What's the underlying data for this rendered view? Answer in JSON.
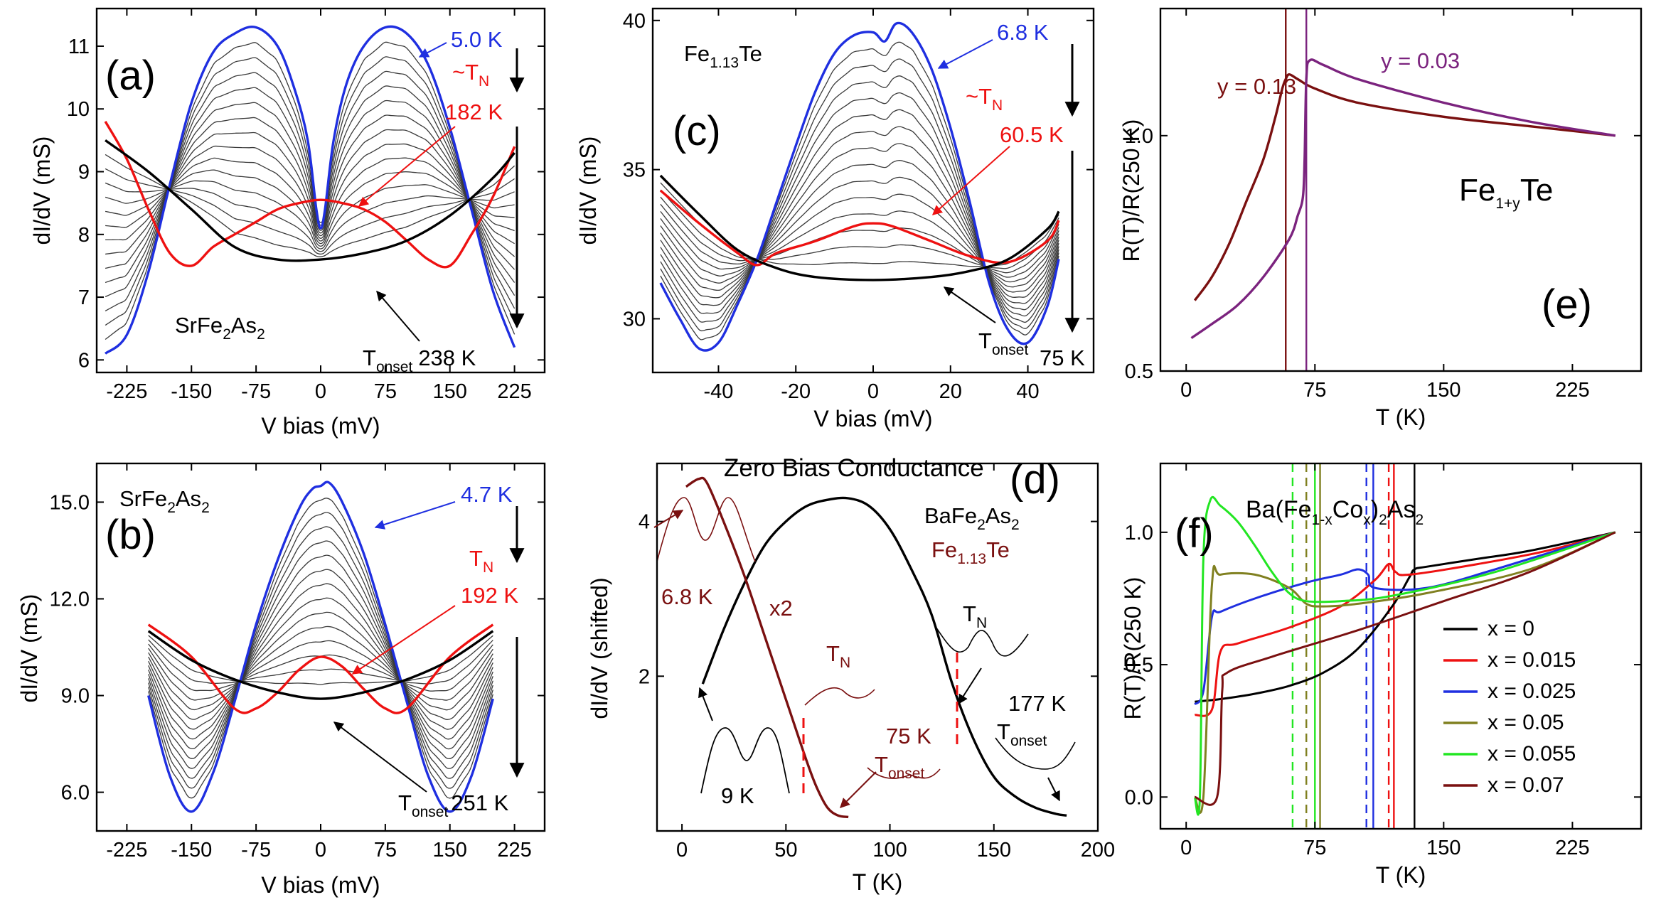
{
  "colors": {
    "blue": "#1f2fe0",
    "red": "#ee1111",
    "black": "#000000",
    "gray": "#3a3a3a",
    "maroon": "#7a1010",
    "purple": "#7b237e",
    "green": "#22e622",
    "olive": "#808020"
  },
  "chart_data": [
    {
      "type": "line",
      "panel": "a",
      "label": "(a)",
      "material": "SrFe",
      "material_sub1": "2",
      "material_mid": "As",
      "material_sub2": "2",
      "xlabel": "V bias (mV)",
      "ylabel": "dI/dV (mS)",
      "xlim": [
        -260,
        260
      ],
      "ylim": [
        5.8,
        11.6
      ],
      "xticks": [
        -225,
        -150,
        -75,
        0,
        75,
        150,
        225
      ],
      "yticks": [
        6,
        7,
        8,
        9,
        10,
        11
      ],
      "xtick_labels": [
        "-225",
        "-150",
        "-75",
        "0",
        "75",
        "150",
        "225"
      ],
      "ytick_labels": [
        "6",
        "7",
        "8",
        "9",
        "10",
        "11"
      ],
      "low_label": "5.0 K",
      "tn_label": "~T",
      "tn_sub": "N",
      "tn_value": "182 K",
      "onset_label": "T",
      "onset_sub": "onset",
      "onset_value": "238 K",
      "series": [
        {
          "name": "5.0 K",
          "color": "blue",
          "x": [
            -250,
            -225,
            -200,
            -175,
            -150,
            -125,
            -100,
            -75,
            -50,
            -30,
            -15,
            -5,
            0,
            5,
            15,
            30,
            50,
            75,
            100,
            125,
            150,
            175,
            200,
            225
          ],
          "y": [
            6.1,
            6.4,
            7.4,
            8.8,
            10.1,
            10.9,
            11.2,
            11.3,
            11.0,
            10.3,
            9.5,
            8.4,
            8.1,
            8.4,
            9.5,
            10.4,
            11.0,
            11.3,
            11.2,
            10.7,
            9.7,
            8.4,
            7.1,
            6.2
          ]
        },
        {
          "name": "182 K",
          "color": "red",
          "x": [
            -250,
            -225,
            -200,
            -175,
            -150,
            -125,
            -100,
            -75,
            -50,
            -25,
            0,
            25,
            50,
            75,
            100,
            125,
            150,
            175,
            200,
            225
          ],
          "y": [
            9.8,
            9.2,
            8.4,
            7.7,
            7.5,
            7.8,
            8.0,
            8.2,
            8.4,
            8.5,
            8.55,
            8.5,
            8.4,
            8.2,
            7.9,
            7.6,
            7.5,
            8.0,
            8.6,
            9.4
          ]
        },
        {
          "name": "238 K",
          "color": "black",
          "x": [
            -250,
            -200,
            -150,
            -100,
            -50,
            0,
            50,
            100,
            150,
            200,
            225
          ],
          "y": [
            9.5,
            9.0,
            8.4,
            7.8,
            7.6,
            7.6,
            7.7,
            7.9,
            8.3,
            8.9,
            9.3
          ]
        }
      ]
    },
    {
      "type": "line",
      "panel": "b",
      "label": "(b)",
      "material": "SrFe",
      "material_sub1": "2",
      "material_mid": "As",
      "material_sub2": "2",
      "xlabel": "V bias (mV)",
      "ylabel": "dI/dV (mS)",
      "xlim": [
        -260,
        260
      ],
      "ylim": [
        4.8,
        16.2
      ],
      "xticks": [
        -225,
        -150,
        -75,
        0,
        75,
        150,
        225
      ],
      "yticks": [
        6,
        9,
        12,
        15
      ],
      "xtick_labels": [
        "-225",
        "-150",
        "-75",
        "0",
        "75",
        "150",
        "225"
      ],
      "ytick_labels": [
        "6.0",
        "9.0",
        "12.0",
        "15.0"
      ],
      "low_label": "4.7 K",
      "tn_label": "T",
      "tn_sub": "N",
      "tn_value": "192 K",
      "onset_label": "T",
      "onset_sub": "onset",
      "onset_value": "251 K",
      "series": [
        {
          "name": "4.7 K",
          "color": "blue",
          "x": [
            -200,
            -175,
            -150,
            -125,
            -100,
            -75,
            -50,
            -25,
            -10,
            0,
            10,
            25,
            50,
            75,
            100,
            125,
            150,
            175,
            200
          ],
          "y": [
            9.0,
            6.5,
            5.4,
            6.6,
            8.8,
            11.2,
            13.2,
            14.8,
            15.4,
            15.5,
            15.6,
            15.0,
            13.4,
            11.2,
            8.8,
            6.5,
            5.4,
            6.5,
            8.9
          ]
        },
        {
          "name": "192 K",
          "color": "red",
          "x": [
            -200,
            -150,
            -100,
            -75,
            -50,
            -25,
            0,
            25,
            50,
            75,
            100,
            150,
            200
          ],
          "y": [
            11.2,
            10.2,
            8.6,
            8.6,
            9.1,
            9.8,
            10.2,
            9.9,
            9.2,
            8.6,
            8.6,
            10.2,
            11.2
          ]
        },
        {
          "name": "251 K",
          "color": "black",
          "x": [
            -200,
            -150,
            -100,
            -50,
            0,
            50,
            100,
            150,
            200
          ],
          "y": [
            11.0,
            10.1,
            9.5,
            9.1,
            8.9,
            9.1,
            9.5,
            10.1,
            11.0
          ]
        }
      ]
    },
    {
      "type": "line",
      "panel": "c",
      "label": "(c)",
      "material": "Fe",
      "material_sub1": "1.13",
      "material_mid": "Te",
      "material_sub2": "",
      "xlabel": "V bias (mV)",
      "ylabel": "dI/dV (mS)",
      "xlim": [
        -57,
        57
      ],
      "ylim": [
        28.2,
        40.4
      ],
      "xticks": [
        -40,
        -20,
        0,
        20,
        40
      ],
      "yticks": [
        30,
        35,
        40
      ],
      "xtick_labels": [
        "-40",
        "-20",
        "0",
        "20",
        "40"
      ],
      "ytick_labels": [
        "30",
        "35",
        "40"
      ],
      "low_label": "6.8 K",
      "tn_label": "~T",
      "tn_sub": "N",
      "tn_value": "60.5 K",
      "onset_label": "T",
      "onset_sub": "onset",
      "onset_value": "75 K",
      "series": [
        {
          "name": "6.8 K",
          "color": "blue",
          "x": [
            -55,
            -50,
            -45,
            -40,
            -35,
            -30,
            -25,
            -20,
            -15,
            -10,
            -5,
            0,
            3,
            6,
            10,
            15,
            20,
            25,
            30,
            35,
            40,
            45,
            48
          ],
          "y": [
            31.2,
            30.0,
            29.0,
            29.2,
            30.5,
            32.0,
            33.9,
            35.8,
            37.6,
            38.9,
            39.5,
            39.6,
            39.3,
            39.9,
            39.6,
            38.4,
            36.4,
            33.9,
            31.2,
            29.6,
            29.2,
            30.4,
            32.0
          ]
        },
        {
          "name": "60.5 K",
          "color": "red",
          "x": [
            -55,
            -45,
            -35,
            -30,
            -25,
            -15,
            -5,
            0,
            5,
            15,
            25,
            35,
            45,
            48
          ],
          "y": [
            34.3,
            33.2,
            32.2,
            31.8,
            32.2,
            32.6,
            33.1,
            33.2,
            33.1,
            32.6,
            32.1,
            31.9,
            32.6,
            33.3
          ]
        },
        {
          "name": "75 K",
          "color": "black",
          "x": [
            -55,
            -45,
            -35,
            -25,
            -15,
            0,
            15,
            25,
            35,
            45,
            48
          ],
          "y": [
            34.8,
            33.5,
            32.3,
            31.7,
            31.4,
            31.3,
            31.4,
            31.6,
            32.0,
            33.0,
            33.6
          ]
        }
      ]
    },
    {
      "type": "line",
      "panel": "d",
      "label": "(d)",
      "title": "Zero Bias Conductance",
      "xlabel": "T (K)",
      "ylabel": "dI/dV (shifted)",
      "xlim": [
        -12,
        200
      ],
      "ylim": [
        0,
        4.75
      ],
      "xticks": [
        0,
        50,
        100,
        150,
        200
      ],
      "yticks": [
        2,
        4
      ],
      "xtick_labels": [
        "0",
        "50",
        "100",
        "150",
        "200"
      ],
      "ytick_labels": [
        "2",
        "4"
      ],
      "ba_material": "BaFe",
      "ba_sub1": "2",
      "ba_mid": "As",
      "ba_sub2": "2",
      "fe_material": "Fe",
      "fe_sub": "1.13",
      "fe_mid": "Te",
      "labels": {
        "k68": "6.8 K",
        "x2": "x2",
        "tn": "T",
        "tn_sub": "N",
        "k75": "75 K",
        "onset": "T",
        "onset_sub": "onset",
        "k9": "9 K",
        "k177": "177 K"
      },
      "series": [
        {
          "name": "BaFe2As2",
          "color": "black",
          "x": [
            10,
            20,
            30,
            40,
            50,
            60,
            70,
            80,
            90,
            100,
            110,
            120,
            130,
            140,
            150,
            160,
            170,
            180,
            185
          ],
          "y": [
            1.9,
            2.6,
            3.2,
            3.7,
            4.0,
            4.2,
            4.28,
            4.3,
            4.2,
            3.9,
            3.4,
            2.8,
            1.9,
            1.2,
            0.7,
            0.45,
            0.3,
            0.22,
            0.2
          ]
        },
        {
          "name": "Fe1.13Te",
          "color": "maroon",
          "x": [
            2,
            8,
            12,
            20,
            30,
            40,
            50,
            60,
            65,
            70,
            75,
            80
          ],
          "y": [
            4.45,
            4.55,
            4.5,
            4.0,
            3.3,
            2.5,
            1.7,
            0.9,
            0.55,
            0.3,
            0.2,
            0.18
          ]
        }
      ]
    },
    {
      "type": "line",
      "panel": "e",
      "label": "(e)",
      "material": "Fe",
      "material_sub1": "1+y",
      "material_mid": "Te",
      "xlabel": "T (K)",
      "ylabel": "R(T)/R(250 K)",
      "xlim": [
        -15,
        265
      ],
      "ylim": [
        0.5,
        1.27
      ],
      "xticks": [
        0,
        75,
        150,
        225
      ],
      "yticks": [
        0.5,
        1.0
      ],
      "xtick_labels": [
        "0",
        "75",
        "150",
        "225"
      ],
      "ytick_labels": [
        "0.5",
        "1.0"
      ],
      "series": [
        {
          "name": "y = 0.13",
          "color": "maroon",
          "x": [
            5,
            15,
            25,
            35,
            45,
            52,
            56,
            58,
            60,
            65,
            75,
            100,
            150,
            200,
            250
          ],
          "y": [
            0.65,
            0.7,
            0.77,
            0.86,
            0.95,
            1.04,
            1.1,
            1.12,
            1.13,
            1.12,
            1.1,
            1.07,
            1.04,
            1.02,
            1.0
          ]
        },
        {
          "name": "y = 0.03",
          "color": "purple",
          "x": [
            3,
            15,
            30,
            45,
            60,
            65,
            68,
            69,
            70,
            72,
            80,
            100,
            150,
            200,
            250
          ],
          "y": [
            0.57,
            0.6,
            0.64,
            0.7,
            0.78,
            0.83,
            0.87,
            0.95,
            1.12,
            1.16,
            1.15,
            1.12,
            1.07,
            1.03,
            1.0
          ]
        }
      ],
      "vlines": [
        {
          "x": 58,
          "color": "maroon"
        },
        {
          "x": 70,
          "color": "purple"
        }
      ]
    },
    {
      "type": "line",
      "panel": "f",
      "label": "(f)",
      "title_main": "Ba(Fe",
      "title_sub": "1-x",
      "title_mid": "Co",
      "title_sub2": "x",
      "title_end": ")",
      "title_sub3": "2",
      "title_tail": "As",
      "title_sub4": "2",
      "xlabel": "T (K)",
      "ylabel": "R(T)/R(250 K)",
      "xlim": [
        -15,
        265
      ],
      "ylim": [
        -0.12,
        1.26
      ],
      "xticks": [
        0,
        75,
        150,
        225
      ],
      "yticks": [
        0.0,
        0.5,
        1.0
      ],
      "xtick_labels": [
        "0",
        "75",
        "150",
        "225"
      ],
      "ytick_labels": [
        "0.0",
        "0.5",
        "1.0"
      ],
      "series": [
        {
          "name": "x = 0",
          "color": "black",
          "x": [
            5,
            20,
            40,
            60,
            80,
            100,
            120,
            130,
            133,
            140,
            170,
            200,
            250
          ],
          "y": [
            0.36,
            0.37,
            0.39,
            0.42,
            0.47,
            0.56,
            0.72,
            0.83,
            0.86,
            0.87,
            0.9,
            0.93,
            1.0
          ]
        },
        {
          "name": "x = 0.015",
          "color": "red",
          "x": [
            5,
            15,
            20,
            30,
            60,
            90,
            110,
            118,
            122,
            130,
            170,
            210,
            250
          ],
          "y": [
            0.31,
            0.33,
            0.55,
            0.58,
            0.64,
            0.72,
            0.82,
            0.88,
            0.85,
            0.84,
            0.88,
            0.93,
            1.0
          ]
        },
        {
          "name": "x = 0.025",
          "color": "blue",
          "x": [
            5,
            10,
            15,
            20,
            40,
            70,
            90,
            100,
            106,
            110,
            140,
            180,
            250
          ],
          "y": [
            0.35,
            0.4,
            0.68,
            0.7,
            0.75,
            0.81,
            0.84,
            0.86,
            0.84,
            0.79,
            0.79,
            0.86,
            1.0
          ]
        },
        {
          "name": "x = 0.05",
          "color": "olive",
          "x": [
            5,
            10,
            15,
            20,
            40,
            60,
            70,
            80,
            100,
            140,
            200,
            250
          ],
          "y": [
            0.0,
            0.0,
            0.8,
            0.84,
            0.84,
            0.79,
            0.73,
            0.72,
            0.73,
            0.77,
            0.86,
            1.0
          ]
        },
        {
          "name": "x = 0.055",
          "color": "green",
          "x": [
            5,
            8,
            10,
            14,
            20,
            30,
            40,
            50,
            60,
            70,
            90,
            120,
            180,
            250
          ],
          "y": [
            0.0,
            0.0,
            0.9,
            1.12,
            1.1,
            1.04,
            0.95,
            0.85,
            0.77,
            0.74,
            0.74,
            0.76,
            0.85,
            1.0
          ]
        },
        {
          "name": "x = 0.07",
          "color": "maroon",
          "x": [
            5,
            18,
            21,
            24,
            50,
            100,
            150,
            200,
            250
          ],
          "y": [
            0.0,
            0.0,
            0.4,
            0.47,
            0.53,
            0.63,
            0.74,
            0.85,
            1.0
          ]
        }
      ],
      "vlines": [
        {
          "x": 62,
          "color": "green",
          "dashed": true
        },
        {
          "x": 70,
          "color": "olive",
          "dashed": true
        },
        {
          "x": 75,
          "color": "green",
          "dashed": false
        },
        {
          "x": 78,
          "color": "olive",
          "dashed": false
        },
        {
          "x": 105,
          "color": "blue",
          "dashed": true
        },
        {
          "x": 109,
          "color": "blue",
          "dashed": false
        },
        {
          "x": 118,
          "color": "red",
          "dashed": true
        },
        {
          "x": 121,
          "color": "red",
          "dashed": false
        },
        {
          "x": 133,
          "color": "black",
          "dashed": false
        }
      ]
    }
  ]
}
